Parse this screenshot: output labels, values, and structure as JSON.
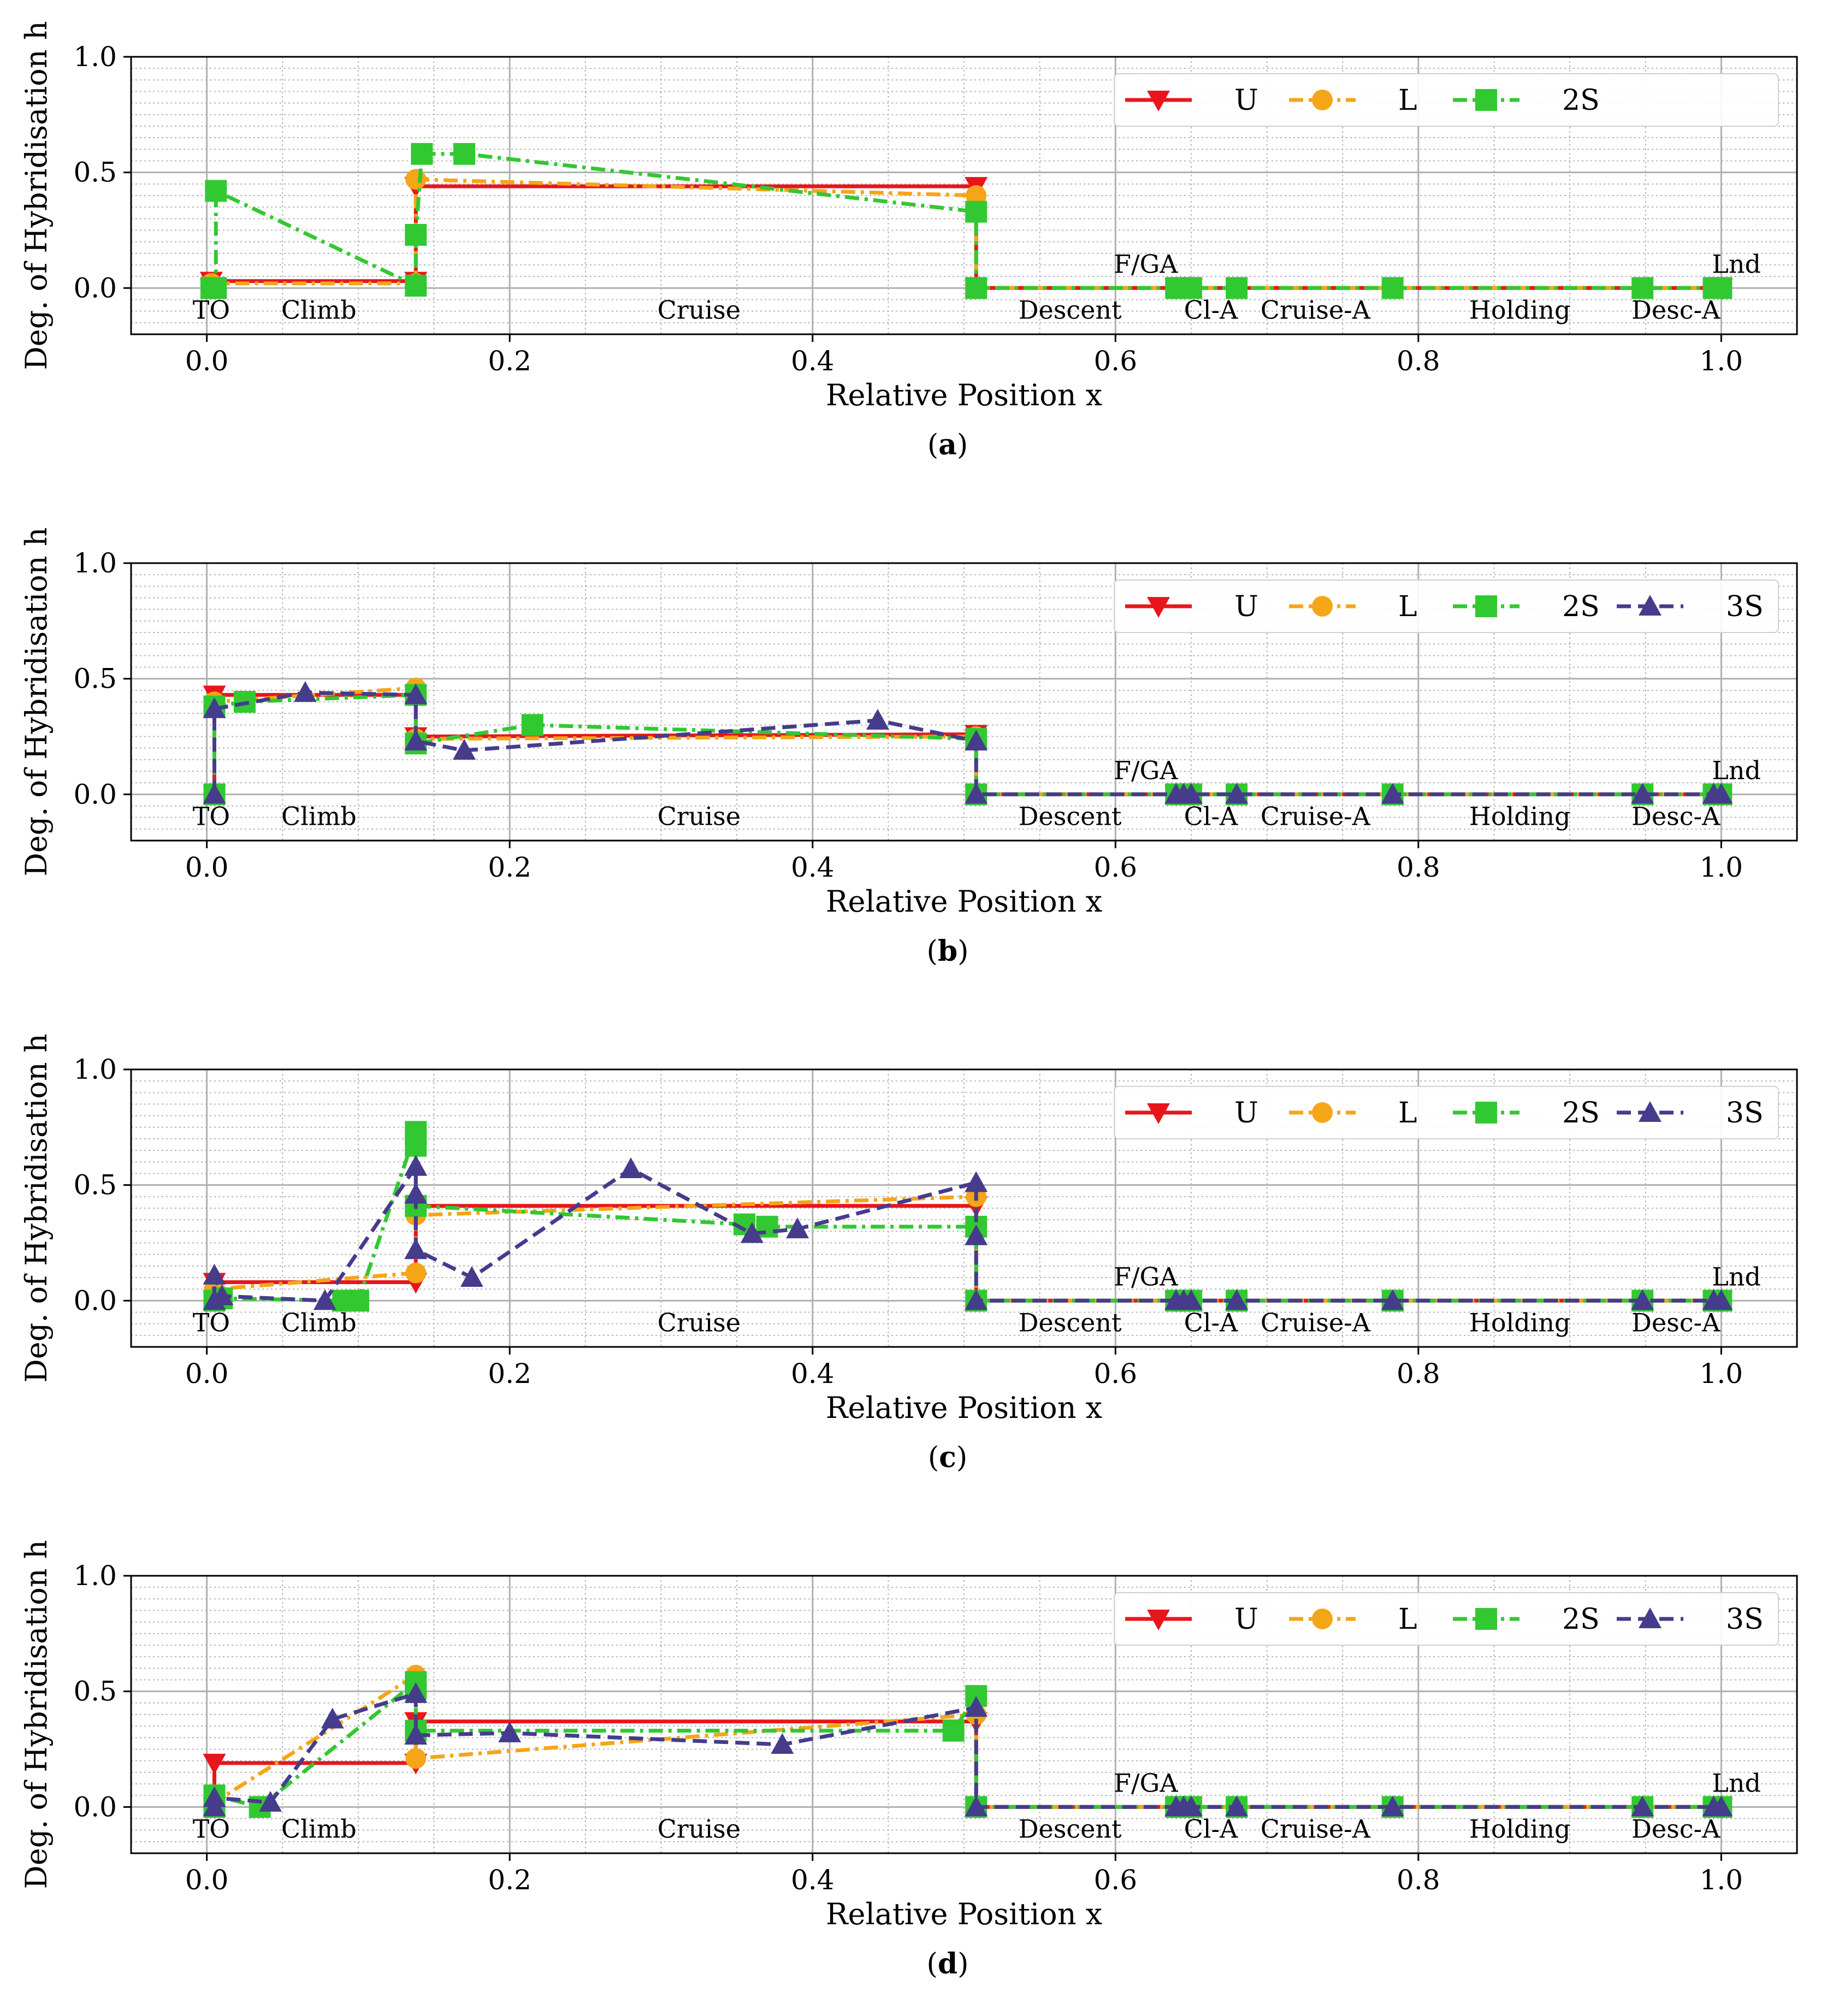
{
  "chart_data": [
    {
      "type": "line",
      "panel": "a",
      "caption_letter": "a",
      "xlabel": "Relative Position x",
      "ylabel": "Deg. of Hybridisation h",
      "xlim": [
        -0.05,
        1.05
      ],
      "ylim": [
        -0.2,
        1.0
      ],
      "x_ticks": [
        "0.0",
        "0.2",
        "0.4",
        "0.6",
        "0.8",
        "1.0"
      ],
      "y_ticks": [
        "0.0",
        "0.5",
        "1.0"
      ],
      "legend_location": "top-right",
      "phases": [
        "TO",
        "Climb",
        "Cruise",
        "Descent",
        "F/GA",
        "Cl-A",
        "Cruise-A",
        "Holding",
        "Desc-A",
        "Lnd"
      ],
      "series": [
        {
          "name": "U",
          "color": "#e8161b",
          "marker": "triangle-down",
          "style": "solid",
          "x": [
            0.003,
            0.003,
            0.138,
            0.138,
            0.508,
            0.508,
            0.64,
            0.65,
            1.0
          ],
          "y": [
            0.0,
            0.03,
            0.03,
            0.44,
            0.44,
            0.0,
            0.0,
            0.0,
            0.0
          ]
        },
        {
          "name": "L",
          "color": "#f5a518",
          "marker": "circle",
          "style": "dashdot",
          "x": [
            0.003,
            0.003,
            0.138,
            0.138,
            0.508,
            0.508,
            0.64,
            0.65,
            1.0
          ],
          "y": [
            0.0,
            0.02,
            0.02,
            0.47,
            0.4,
            0.0,
            0.0,
            0.0,
            0.0
          ]
        },
        {
          "name": "2S",
          "color": "#32c832",
          "marker": "square",
          "style": "dashdot",
          "x": [
            0.003,
            0.006,
            0.006,
            0.138,
            0.138,
            0.142,
            0.17,
            0.508,
            0.508,
            0.64,
            0.645,
            0.65,
            0.68,
            0.783,
            0.948,
            0.995,
            1.0
          ],
          "y": [
            0.0,
            0.0,
            0.42,
            0.01,
            0.23,
            0.58,
            0.58,
            0.33,
            0.0,
            0.0,
            0.0,
            0.0,
            0.0,
            0.0,
            0.0,
            0.0,
            0.0
          ]
        }
      ]
    },
    {
      "type": "line",
      "panel": "b",
      "caption_letter": "b",
      "xlabel": "Relative Position x",
      "ylabel": "Deg. of Hybridisation h",
      "xlim": [
        -0.05,
        1.05
      ],
      "ylim": [
        -0.2,
        1.0
      ],
      "x_ticks": [
        "0.0",
        "0.2",
        "0.4",
        "0.6",
        "0.8",
        "1.0"
      ],
      "y_ticks": [
        "0.0",
        "0.5",
        "1.0"
      ],
      "legend_location": "top-right",
      "phases": [
        "TO",
        "Climb",
        "Cruise",
        "Descent",
        "F/GA",
        "Cl-A",
        "Cruise-A",
        "Holding",
        "Desc-A",
        "Lnd"
      ],
      "series": [
        {
          "name": "U",
          "color": "#e8161b",
          "marker": "triangle-down",
          "style": "solid",
          "x": [
            0.005,
            0.005,
            0.138,
            0.138,
            0.508,
            0.508,
            0.64,
            0.65,
            1.0
          ],
          "y": [
            0.0,
            0.43,
            0.43,
            0.25,
            0.26,
            0.0,
            0.0,
            0.0,
            0.0
          ]
        },
        {
          "name": "L",
          "color": "#f5a518",
          "marker": "circle",
          "style": "dashdot",
          "x": [
            0.005,
            0.005,
            0.138,
            0.138,
            0.508,
            0.508,
            0.64,
            0.65,
            1.0
          ],
          "y": [
            0.0,
            0.4,
            0.46,
            0.24,
            0.25,
            0.0,
            0.0,
            0.0,
            0.0
          ]
        },
        {
          "name": "2S",
          "color": "#32c832",
          "marker": "square",
          "style": "dashdot",
          "x": [
            0.005,
            0.005,
            0.025,
            0.138,
            0.138,
            0.215,
            0.508,
            0.508,
            0.64,
            0.645,
            0.65,
            0.68,
            0.783,
            0.948,
            0.995,
            1.0
          ],
          "y": [
            0.0,
            0.38,
            0.4,
            0.43,
            0.22,
            0.3,
            0.24,
            0.0,
            0.0,
            0.0,
            0.0,
            0.0,
            0.0,
            0.0,
            0.0,
            0.0
          ]
        },
        {
          "name": "3S",
          "color": "#463c8c",
          "marker": "triangle-up",
          "style": "dashed",
          "x": [
            0.005,
            0.005,
            0.065,
            0.138,
            0.138,
            0.17,
            0.443,
            0.508,
            0.508,
            0.64,
            0.645,
            0.65,
            0.68,
            0.783,
            0.948,
            0.995,
            1.0
          ],
          "y": [
            0.0,
            0.37,
            0.44,
            0.43,
            0.23,
            0.19,
            0.32,
            0.23,
            0.0,
            0.0,
            0.0,
            0.0,
            0.0,
            0.0,
            0.0,
            0.0,
            0.0
          ]
        }
      ]
    },
    {
      "type": "line",
      "panel": "c",
      "caption_letter": "c",
      "xlabel": "Relative Position x",
      "ylabel": "Deg. of Hybridisation h",
      "xlim": [
        -0.05,
        1.05
      ],
      "ylim": [
        -0.2,
        1.0
      ],
      "x_ticks": [
        "0.0",
        "0.2",
        "0.4",
        "0.6",
        "0.8",
        "1.0"
      ],
      "y_ticks": [
        "0.0",
        "0.5",
        "1.0"
      ],
      "legend_location": "top-right",
      "phases": [
        "TO",
        "Climb",
        "Cruise",
        "Descent",
        "F/GA",
        "Cl-A",
        "Cruise-A",
        "Holding",
        "Desc-A",
        "Lnd"
      ],
      "series": [
        {
          "name": "U",
          "color": "#e8161b",
          "marker": "triangle-down",
          "style": "solid",
          "x": [
            0.005,
            0.005,
            0.138,
            0.138,
            0.508,
            0.508,
            0.64,
            0.65,
            1.0
          ],
          "y": [
            0.0,
            0.08,
            0.08,
            0.41,
            0.41,
            0.0,
            0.0,
            0.0,
            0.0
          ]
        },
        {
          "name": "L",
          "color": "#f5a518",
          "marker": "circle",
          "style": "dashdot",
          "x": [
            0.005,
            0.005,
            0.138,
            0.138,
            0.508,
            0.508,
            0.64,
            0.65,
            1.0
          ],
          "y": [
            0.0,
            0.05,
            0.12,
            0.37,
            0.45,
            0.0,
            0.0,
            0.0,
            0.0
          ]
        },
        {
          "name": "2S",
          "color": "#32c832",
          "marker": "square",
          "style": "dashdot",
          "x": [
            0.005,
            0.01,
            0.09,
            0.1,
            0.138,
            0.138,
            0.138,
            0.355,
            0.37,
            0.508,
            0.508,
            0.64,
            0.645,
            0.65,
            0.68,
            0.783,
            0.948,
            0.995,
            1.0
          ],
          "y": [
            0.0,
            0.01,
            0.0,
            0.0,
            0.73,
            0.67,
            0.41,
            0.33,
            0.32,
            0.32,
            0.0,
            0.0,
            0.0,
            0.0,
            0.0,
            0.0,
            0.0,
            0.0,
            0.0
          ]
        },
        {
          "name": "3S",
          "color": "#463c8c",
          "marker": "triangle-up",
          "style": "dashed",
          "x": [
            0.005,
            0.005,
            0.01,
            0.078,
            0.138,
            0.138,
            0.138,
            0.175,
            0.28,
            0.36,
            0.39,
            0.508,
            0.508,
            0.508,
            0.64,
            0.645,
            0.65,
            0.68,
            0.783,
            0.948,
            0.995,
            1.0
          ],
          "y": [
            0.0,
            0.11,
            0.02,
            0.0,
            0.58,
            0.46,
            0.22,
            0.1,
            0.57,
            0.29,
            0.31,
            0.51,
            0.28,
            0.0,
            0.0,
            0.0,
            0.0,
            0.0,
            0.0,
            0.0,
            0.0,
            0.0
          ]
        }
      ]
    },
    {
      "type": "line",
      "panel": "d",
      "caption_letter": "d",
      "xlabel": "Relative Position x",
      "ylabel": "Deg. of Hybridisation h",
      "xlim": [
        -0.05,
        1.05
      ],
      "ylim": [
        -0.2,
        1.0
      ],
      "x_ticks": [
        "0.0",
        "0.2",
        "0.4",
        "0.6",
        "0.8",
        "1.0"
      ],
      "y_ticks": [
        "0.0",
        "0.5",
        "1.0"
      ],
      "legend_location": "top-right",
      "phases": [
        "TO",
        "Climb",
        "Cruise",
        "Descent",
        "F/GA",
        "Cl-A",
        "Cruise-A",
        "Holding",
        "Desc-A",
        "Lnd"
      ],
      "series": [
        {
          "name": "U",
          "color": "#e8161b",
          "marker": "triangle-down",
          "style": "solid",
          "x": [
            0.005,
            0.005,
            0.138,
            0.138,
            0.508,
            0.508,
            0.64,
            0.65,
            1.0
          ],
          "y": [
            0.0,
            0.19,
            0.19,
            0.37,
            0.37,
            0.0,
            0.0,
            0.0,
            0.0
          ]
        },
        {
          "name": "L",
          "color": "#f5a518",
          "marker": "circle",
          "style": "dashdot",
          "x": [
            0.005,
            0.005,
            0.138,
            0.138,
            0.508,
            0.508,
            0.64,
            0.65,
            1.0
          ],
          "y": [
            0.0,
            0.02,
            0.57,
            0.21,
            0.4,
            0.0,
            0.0,
            0.0,
            0.0
          ]
        },
        {
          "name": "2S",
          "color": "#32c832",
          "marker": "square",
          "style": "dashdot",
          "x": [
            0.005,
            0.005,
            0.035,
            0.138,
            0.138,
            0.138,
            0.493,
            0.508,
            0.508,
            0.64,
            0.645,
            0.65,
            0.68,
            0.783,
            0.948,
            0.995,
            1.0
          ],
          "y": [
            0.0,
            0.05,
            0.0,
            0.54,
            0.51,
            0.33,
            0.33,
            0.48,
            0.0,
            0.0,
            0.0,
            0.0,
            0.0,
            0.0,
            0.0,
            0.0,
            0.0
          ]
        },
        {
          "name": "3S",
          "color": "#463c8c",
          "marker": "triangle-up",
          "style": "dashed",
          "x": [
            0.005,
            0.005,
            0.042,
            0.083,
            0.138,
            0.138,
            0.2,
            0.38,
            0.508,
            0.508,
            0.64,
            0.645,
            0.65,
            0.68,
            0.783,
            0.948,
            0.995,
            1.0
          ],
          "y": [
            0.0,
            0.04,
            0.02,
            0.38,
            0.49,
            0.31,
            0.32,
            0.27,
            0.43,
            0.0,
            0.0,
            0.0,
            0.0,
            0.0,
            0.0,
            0.0,
            0.0,
            0.0
          ]
        }
      ]
    }
  ]
}
